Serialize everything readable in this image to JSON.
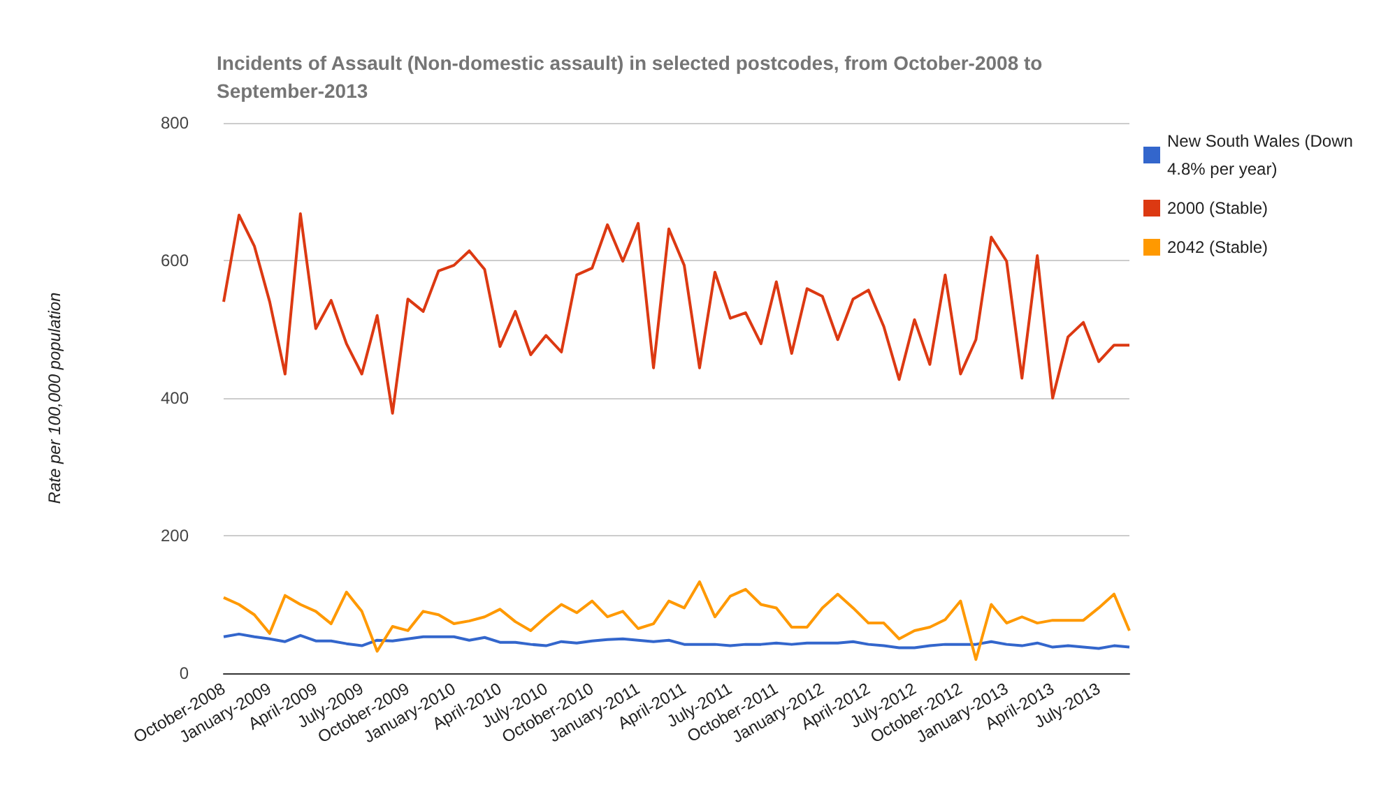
{
  "chart_data": {
    "type": "line",
    "title": "Incidents of Assault (Non-domestic assault) in selected postcodes, from October-2008 to September-2013",
    "ylabel": "Rate per 100,000 population",
    "categories": [
      "October-2008",
      null,
      null,
      "January-2009",
      null,
      null,
      "April-2009",
      null,
      null,
      "July-2009",
      null,
      null,
      "October-2009",
      null,
      null,
      "January-2010",
      null,
      null,
      "April-2010",
      null,
      null,
      "July-2010",
      null,
      null,
      "October-2010",
      null,
      null,
      "January-2011",
      null,
      null,
      "April-2011",
      null,
      null,
      "July-2011",
      null,
      null,
      "October-2011",
      null,
      null,
      "January-2012",
      null,
      null,
      "April-2012",
      null,
      null,
      "July-2012",
      null,
      null,
      "October-2012",
      null,
      null,
      "January-2013",
      null,
      null,
      "April-2013",
      null,
      null,
      "July-2013",
      null,
      null
    ],
    "series": [
      {
        "name": "New South Wales (Down 4.8% per year)",
        "color": "#3366cc",
        "values": [
          53,
          57,
          53,
          50,
          46,
          55,
          47,
          47,
          43,
          40,
          48,
          47,
          50,
          53,
          53,
          53,
          48,
          52,
          45,
          45,
          42,
          40,
          46,
          44,
          47,
          49,
          50,
          48,
          46,
          48,
          42,
          42,
          42,
          40,
          42,
          42,
          44,
          42,
          44,
          44,
          44,
          46,
          42,
          40,
          37,
          37,
          40,
          42,
          42,
          42,
          46,
          42,
          40,
          44,
          38,
          40,
          38,
          36,
          40,
          38
        ]
      },
      {
        "name": "2000 (Stable)",
        "color": "#dc3912",
        "values": [
          540,
          666,
          621,
          540,
          435,
          668,
          501,
          542,
          479,
          435,
          520,
          378,
          544,
          526,
          585,
          593,
          614,
          587,
          475,
          526,
          463,
          491,
          467,
          579,
          589,
          652,
          599,
          654,
          444,
          646,
          593,
          444,
          583,
          516,
          524,
          479,
          569,
          465,
          559,
          548,
          485,
          544,
          557,
          504,
          427,
          514,
          449,
          579,
          435,
          485,
          634,
          599,
          429,
          607,
          400,
          489,
          510,
          453,
          477,
          477
        ]
      },
      {
        "name": "2042 (Stable)",
        "color": "#ff9900",
        "values": [
          110,
          100,
          85,
          58,
          113,
          100,
          90,
          72,
          118,
          90,
          32,
          68,
          62,
          90,
          85,
          72,
          76,
          82,
          93,
          75,
          62,
          82,
          100,
          88,
          105,
          82,
          90,
          65,
          72,
          105,
          95,
          133,
          82,
          112,
          122,
          100,
          95,
          67,
          67,
          95,
          115,
          95,
          73,
          73,
          50,
          62,
          67,
          78,
          105,
          20,
          100,
          73,
          82,
          73,
          77,
          77,
          77,
          95,
          115,
          62
        ]
      }
    ],
    "ylim": [
      0,
      800
    ],
    "yticks": [
      0,
      200,
      400,
      600,
      800
    ],
    "grid": "y",
    "legend": "right",
    "marker": "none",
    "line_style": "solid"
  }
}
